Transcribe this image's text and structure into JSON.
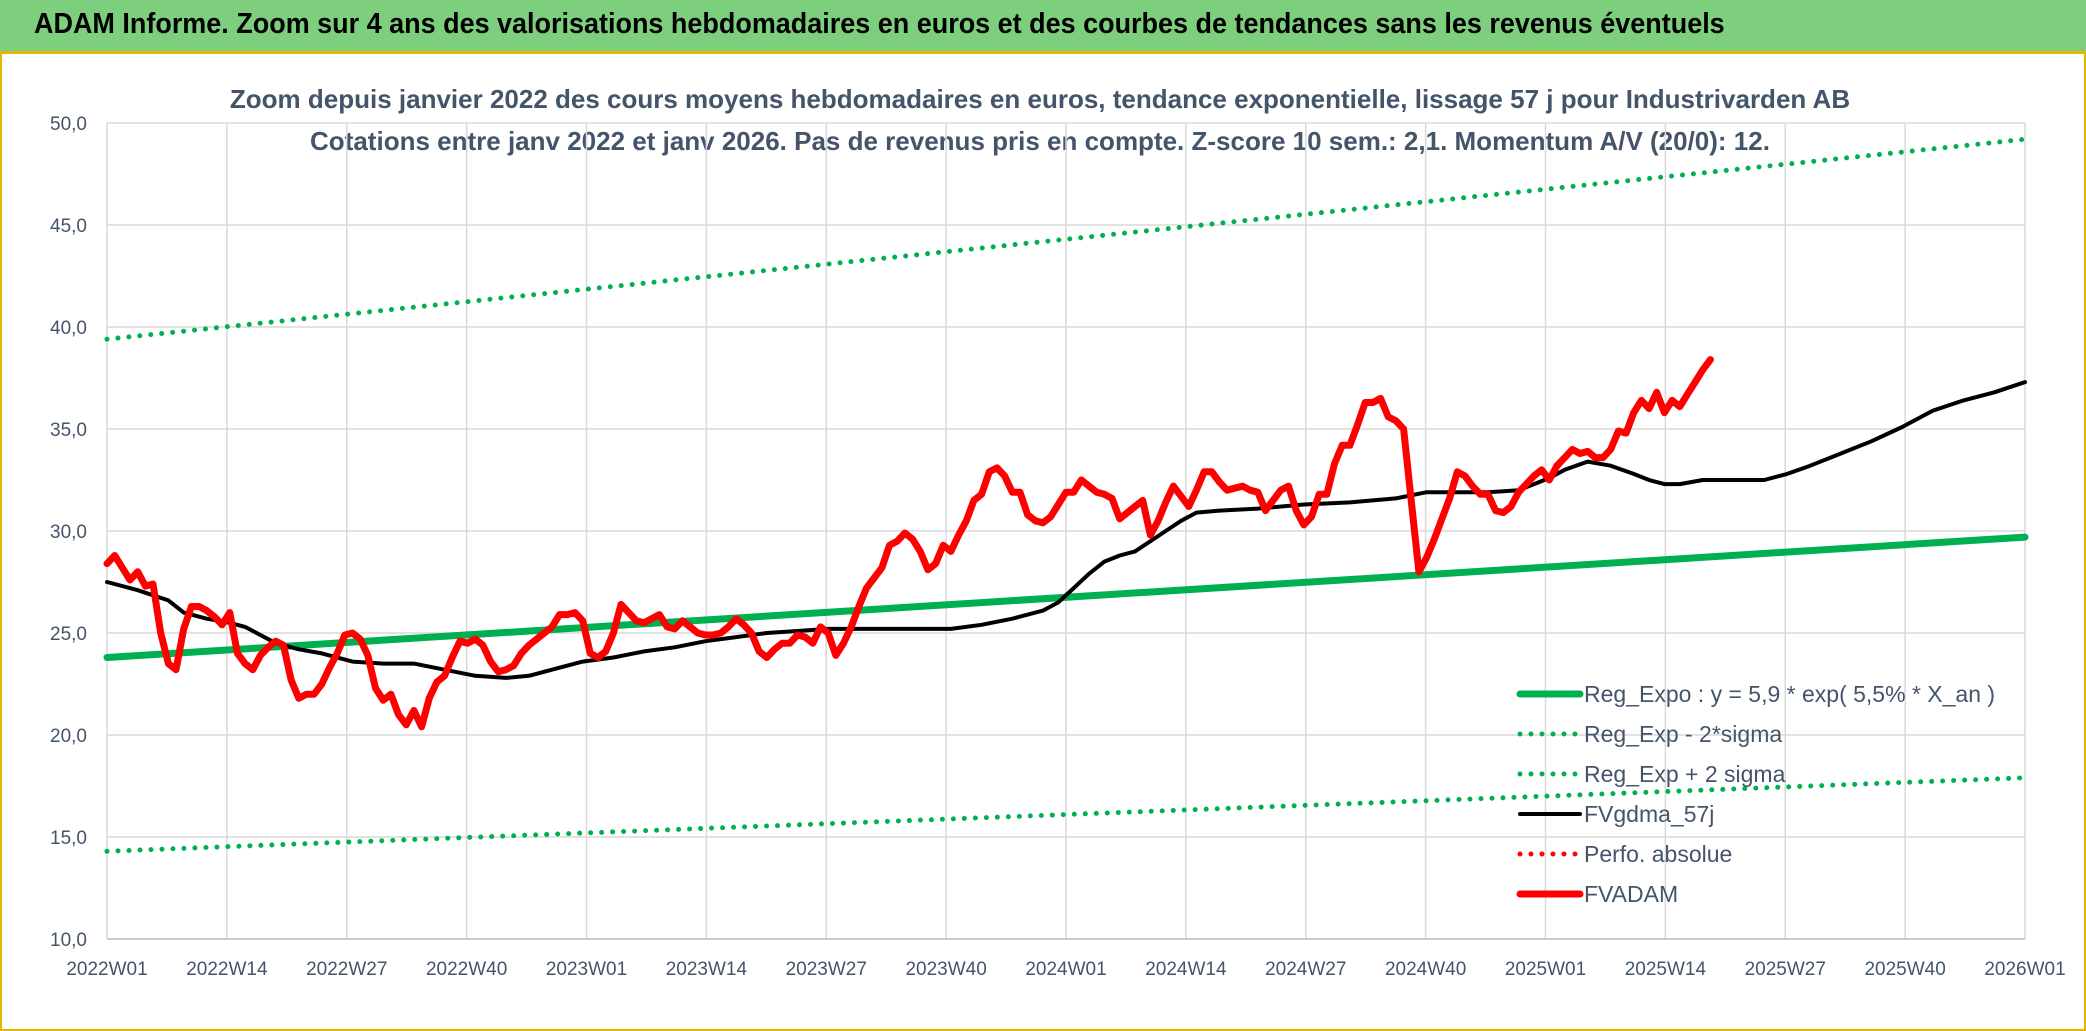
{
  "banner": {
    "title": "ADAM Informe. Zoom sur 4 ans des valorisations hebdomadaires en euros et des courbes de tendances sans les revenus éventuels"
  },
  "colors": {
    "green": "#00b050",
    "black": "#000000",
    "red": "#ff0000",
    "banner": "#7dcf7d",
    "text": "#44546a",
    "grid": "#d9d9d9"
  },
  "chart_data": {
    "type": "line",
    "title": "Zoom depuis janvier 2022 des cours moyens hebdomadaires en euros, tendance exponentielle, lissage 57 j pour Industrivarden AB",
    "subtitle": "Cotations entre janv 2022 et janv 2026. Pas de revenus pris en compte. Z-score 10 sem.: 2,1. Momentum A/V (20/0): 12.",
    "xlabel": "",
    "ylabel": "",
    "ylim": [
      10,
      50
    ],
    "yticks": [
      "10,0",
      "15,0",
      "20,0",
      "25,0",
      "30,0",
      "35,0",
      "40,0",
      "45,0",
      "50,0"
    ],
    "x_tick_labels": [
      "2022W01",
      "2022W14",
      "2022W27",
      "2022W40",
      "2023W01",
      "2023W14",
      "2023W27",
      "2023W40",
      "2024W01",
      "2024W14",
      "2024W27",
      "2024W40",
      "2025W01",
      "2025W14",
      "2025W27",
      "2025W40",
      "2026W01"
    ],
    "grid": true,
    "legend_position": "bottom-right",
    "series": [
      {
        "name": "Reg_Expo : y = 5,9 * exp( 5,5% *  X_an )",
        "style": "solid-thick",
        "color": "#00b050",
        "points": [
          [
            0,
            23.8
          ],
          [
            208,
            29.7
          ]
        ]
      },
      {
        "name": "Reg_Exp - 2*sigma",
        "style": "dotted",
        "color": "#00b050",
        "points": [
          [
            0,
            14.3
          ],
          [
            208,
            17.9
          ]
        ]
      },
      {
        "name": "Reg_Exp + 2 sigma",
        "style": "dotted",
        "color": "#00b050",
        "points": [
          [
            0,
            39.4
          ],
          [
            208,
            49.2
          ]
        ]
      },
      {
        "name": "FVgdma_57j",
        "style": "solid",
        "color": "#000000",
        "points": [
          [
            0,
            27.5
          ],
          [
            4,
            27.1
          ],
          [
            8,
            26.6
          ],
          [
            10,
            26.0
          ],
          [
            13,
            25.7
          ],
          [
            16,
            25.5
          ],
          [
            18,
            25.3
          ],
          [
            20,
            24.9
          ],
          [
            22,
            24.5
          ],
          [
            25,
            24.2
          ],
          [
            28,
            24.0
          ],
          [
            32,
            23.6
          ],
          [
            36,
            23.5
          ],
          [
            40,
            23.5
          ],
          [
            44,
            23.2
          ],
          [
            48,
            22.9
          ],
          [
            52,
            22.8
          ],
          [
            55,
            22.9
          ],
          [
            58,
            23.2
          ],
          [
            62,
            23.6
          ],
          [
            66,
            23.8
          ],
          [
            70,
            24.1
          ],
          [
            74,
            24.3
          ],
          [
            78,
            24.6
          ],
          [
            82,
            24.8
          ],
          [
            86,
            25.0
          ],
          [
            90,
            25.1
          ],
          [
            94,
            25.2
          ],
          [
            98,
            25.2
          ],
          [
            102,
            25.2
          ],
          [
            106,
            25.2
          ],
          [
            110,
            25.2
          ],
          [
            114,
            25.4
          ],
          [
            118,
            25.7
          ],
          [
            122,
            26.1
          ],
          [
            124,
            26.5
          ],
          [
            126,
            27.2
          ],
          [
            128,
            27.9
          ],
          [
            130,
            28.5
          ],
          [
            132,
            28.8
          ],
          [
            134,
            29.0
          ],
          [
            136,
            29.5
          ],
          [
            138,
            30.0
          ],
          [
            140,
            30.5
          ],
          [
            142,
            30.9
          ],
          [
            145,
            31.0
          ],
          [
            150,
            31.1
          ],
          [
            156,
            31.3
          ],
          [
            162,
            31.4
          ],
          [
            168,
            31.6
          ],
          [
            172,
            31.9
          ],
          [
            176,
            31.9
          ],
          [
            180,
            31.9
          ],
          [
            184,
            32.0
          ],
          [
            186,
            32.3
          ],
          [
            188,
            32.6
          ],
          [
            190,
            33.0
          ],
          [
            193,
            33.4
          ],
          [
            196,
            33.2
          ],
          [
            199,
            32.8
          ],
          [
            201,
            32.5
          ],
          [
            203,
            32.3
          ],
          [
            205,
            32.3
          ],
          [
            208,
            32.5
          ],
          [
            212,
            32.5
          ],
          [
            216,
            32.5
          ],
          [
            219,
            32.8
          ],
          [
            222,
            33.2
          ],
          [
            226,
            33.8
          ],
          [
            230,
            34.4
          ],
          [
            234,
            35.1
          ],
          [
            238,
            35.9
          ],
          [
            242,
            36.4
          ],
          [
            246,
            36.8
          ],
          [
            250,
            37.3
          ]
        ]
      },
      {
        "name": "Perfo. absolue",
        "style": "dotted",
        "color": "#ff0000",
        "points": []
      },
      {
        "name": "FVADAM",
        "style": "solid-thick",
        "color": "#ff0000",
        "points": [
          [
            0,
            28.4
          ],
          [
            1,
            28.8
          ],
          [
            2,
            28.2
          ],
          [
            3,
            27.6
          ],
          [
            4,
            28.0
          ],
          [
            5,
            27.3
          ],
          [
            6,
            27.4
          ],
          [
            7,
            25.0
          ],
          [
            8,
            23.5
          ],
          [
            9,
            23.2
          ],
          [
            10,
            25.2
          ],
          [
            11,
            26.3
          ],
          [
            12,
            26.3
          ],
          [
            13,
            26.1
          ],
          [
            14,
            25.8
          ],
          [
            15,
            25.4
          ],
          [
            16,
            26.0
          ],
          [
            17,
            24.0
          ],
          [
            18,
            23.5
          ],
          [
            19,
            23.2
          ],
          [
            20,
            23.9
          ],
          [
            21,
            24.3
          ],
          [
            22,
            24.6
          ],
          [
            23,
            24.4
          ],
          [
            24,
            22.7
          ],
          [
            25,
            21.8
          ],
          [
            26,
            22.0
          ],
          [
            27,
            22.0
          ],
          [
            28,
            22.5
          ],
          [
            29,
            23.3
          ],
          [
            30,
            24.0
          ],
          [
            31,
            24.9
          ],
          [
            32,
            25.0
          ],
          [
            33,
            24.7
          ],
          [
            34,
            23.9
          ],
          [
            35,
            22.3
          ],
          [
            36,
            21.7
          ],
          [
            37,
            22.0
          ],
          [
            38,
            21.0
          ],
          [
            39,
            20.5
          ],
          [
            40,
            21.2
          ],
          [
            41,
            20.4
          ],
          [
            42,
            21.8
          ],
          [
            43,
            22.6
          ],
          [
            44,
            22.9
          ],
          [
            45,
            23.8
          ],
          [
            46,
            24.6
          ],
          [
            47,
            24.5
          ],
          [
            48,
            24.7
          ],
          [
            49,
            24.4
          ],
          [
            50,
            23.6
          ],
          [
            51,
            23.1
          ],
          [
            52,
            23.2
          ],
          [
            53,
            23.4
          ],
          [
            54,
            24.0
          ],
          [
            55,
            24.4
          ],
          [
            56,
            24.7
          ],
          [
            57,
            25.0
          ],
          [
            58,
            25.3
          ],
          [
            59,
            25.9
          ],
          [
            60,
            25.9
          ],
          [
            61,
            26.0
          ],
          [
            62,
            25.6
          ],
          [
            63,
            24.0
          ],
          [
            64,
            23.8
          ],
          [
            65,
            24.1
          ],
          [
            66,
            25.0
          ],
          [
            67,
            26.4
          ],
          [
            68,
            26.0
          ],
          [
            69,
            25.6
          ],
          [
            70,
            25.5
          ],
          [
            71,
            25.7
          ],
          [
            72,
            25.9
          ],
          [
            73,
            25.3
          ],
          [
            74,
            25.2
          ],
          [
            75,
            25.6
          ],
          [
            76,
            25.3
          ],
          [
            77,
            25.0
          ],
          [
            78,
            24.9
          ],
          [
            79,
            24.9
          ],
          [
            80,
            25.0
          ],
          [
            81,
            25.3
          ],
          [
            82,
            25.7
          ],
          [
            83,
            25.4
          ],
          [
            84,
            25.0
          ],
          [
            85,
            24.1
          ],
          [
            86,
            23.8
          ],
          [
            87,
            24.2
          ],
          [
            88,
            24.5
          ],
          [
            89,
            24.5
          ],
          [
            90,
            24.9
          ],
          [
            91,
            24.8
          ],
          [
            92,
            24.5
          ],
          [
            93,
            25.3
          ],
          [
            94,
            25.0
          ],
          [
            95,
            23.9
          ],
          [
            96,
            24.5
          ],
          [
            97,
            25.3
          ],
          [
            98,
            26.3
          ],
          [
            99,
            27.2
          ],
          [
            100,
            27.7
          ],
          [
            101,
            28.2
          ],
          [
            102,
            29.3
          ],
          [
            103,
            29.5
          ],
          [
            104,
            29.9
          ],
          [
            105,
            29.6
          ],
          [
            106,
            29.0
          ],
          [
            107,
            28.1
          ],
          [
            108,
            28.4
          ],
          [
            109,
            29.3
          ],
          [
            110,
            29.0
          ],
          [
            111,
            29.8
          ],
          [
            112,
            30.5
          ],
          [
            113,
            31.5
          ],
          [
            114,
            31.8
          ],
          [
            115,
            32.9
          ],
          [
            116,
            33.1
          ],
          [
            117,
            32.7
          ],
          [
            118,
            31.9
          ],
          [
            119,
            31.9
          ],
          [
            120,
            30.8
          ],
          [
            121,
            30.5
          ],
          [
            122,
            30.4
          ],
          [
            123,
            30.7
          ],
          [
            124,
            31.3
          ],
          [
            125,
            31.9
          ],
          [
            126,
            31.9
          ],
          [
            127,
            32.5
          ],
          [
            128,
            32.2
          ],
          [
            129,
            31.9
          ],
          [
            130,
            31.8
          ],
          [
            131,
            31.6
          ],
          [
            132,
            30.6
          ],
          [
            133,
            30.9
          ],
          [
            134,
            31.2
          ],
          [
            135,
            31.5
          ],
          [
            136,
            29.8
          ],
          [
            137,
            30.5
          ],
          [
            138,
            31.4
          ],
          [
            139,
            32.2
          ],
          [
            140,
            31.7
          ],
          [
            141,
            31.2
          ],
          [
            142,
            32.0
          ],
          [
            143,
            32.9
          ],
          [
            144,
            32.9
          ],
          [
            145,
            32.4
          ],
          [
            146,
            32.0
          ],
          [
            147,
            32.1
          ],
          [
            148,
            32.2
          ],
          [
            149,
            32.0
          ],
          [
            150,
            31.9
          ],
          [
            151,
            31.0
          ],
          [
            152,
            31.5
          ],
          [
            153,
            32.0
          ],
          [
            154,
            32.2
          ],
          [
            155,
            31.0
          ],
          [
            156,
            30.3
          ],
          [
            157,
            30.7
          ],
          [
            158,
            31.8
          ],
          [
            159,
            31.8
          ],
          [
            160,
            33.3
          ],
          [
            161,
            34.2
          ],
          [
            162,
            34.2
          ],
          [
            163,
            35.2
          ],
          [
            164,
            36.3
          ],
          [
            165,
            36.3
          ],
          [
            166,
            36.5
          ],
          [
            167,
            35.6
          ],
          [
            168,
            35.4
          ],
          [
            169,
            35.0
          ],
          [
            170,
            31.5
          ],
          [
            171,
            28.0
          ],
          [
            172,
            28.7
          ],
          [
            173,
            29.6
          ],
          [
            174,
            30.6
          ],
          [
            175,
            31.6
          ],
          [
            176,
            32.9
          ],
          [
            177,
            32.7
          ],
          [
            178,
            32.2
          ],
          [
            179,
            31.8
          ],
          [
            180,
            31.8
          ],
          [
            181,
            31.0
          ],
          [
            182,
            30.9
          ],
          [
            183,
            31.2
          ],
          [
            184,
            31.9
          ],
          [
            185,
            32.3
          ],
          [
            186,
            32.7
          ],
          [
            187,
            33.0
          ],
          [
            188,
            32.5
          ],
          [
            189,
            33.2
          ],
          [
            190,
            33.6
          ],
          [
            191,
            34.0
          ],
          [
            192,
            33.8
          ],
          [
            193,
            33.9
          ],
          [
            194,
            33.6
          ],
          [
            195,
            33.6
          ],
          [
            196,
            34.0
          ],
          [
            197,
            34.9
          ],
          [
            198,
            34.8
          ],
          [
            199,
            35.8
          ],
          [
            200,
            36.4
          ],
          [
            201,
            36.0
          ],
          [
            202,
            36.8
          ],
          [
            203,
            35.8
          ],
          [
            204,
            36.4
          ],
          [
            205,
            36.1
          ],
          [
            206,
            36.7
          ],
          [
            207,
            37.3
          ],
          [
            208,
            37.9
          ],
          [
            209,
            38.4
          ]
        ]
      }
    ]
  }
}
